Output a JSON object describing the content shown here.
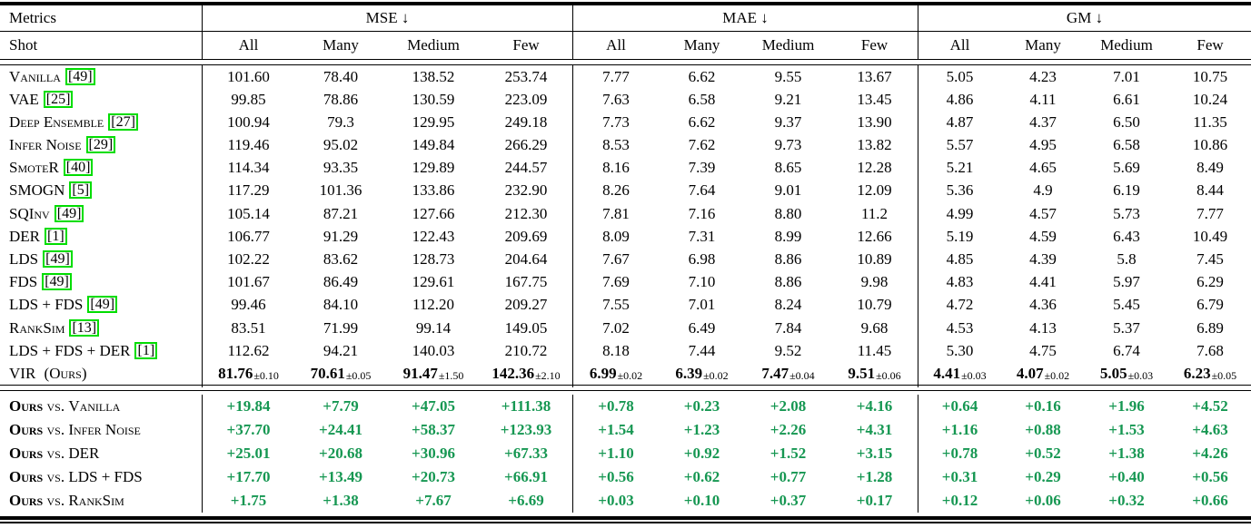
{
  "table": {
    "header": {
      "metrics_label": "Metrics",
      "shot_label": "Shot",
      "groups": [
        "MSE ↓",
        "MAE ↓",
        "GM ↓"
      ],
      "subcols": [
        "All",
        "Many",
        "Medium",
        "Few"
      ]
    },
    "methods": [
      {
        "name": "Vanilla",
        "cite": "49",
        "values": [
          "101.60",
          "78.40",
          "138.52",
          "253.74",
          "7.77",
          "6.62",
          "9.55",
          "13.67",
          "5.05",
          "4.23",
          "7.01",
          "10.75"
        ]
      },
      {
        "name": "VAE",
        "cite": "25",
        "values": [
          "99.85",
          "78.86",
          "130.59",
          "223.09",
          "7.63",
          "6.58",
          "9.21",
          "13.45",
          "4.86",
          "4.11",
          "6.61",
          "10.24"
        ]
      },
      {
        "name": "Deep Ensemble",
        "cite": "27",
        "values": [
          "100.94",
          "79.3",
          "129.95",
          "249.18",
          "7.73",
          "6.62",
          "9.37",
          "13.90",
          "4.87",
          "4.37",
          "6.50",
          "11.35"
        ]
      },
      {
        "name": "Infer Noise",
        "cite": "29",
        "values": [
          "119.46",
          "95.02",
          "149.84",
          "266.29",
          "8.53",
          "7.62",
          "9.73",
          "13.82",
          "5.57",
          "4.95",
          "6.58",
          "10.86"
        ]
      },
      {
        "name": "SmoteR",
        "cite": "40",
        "values": [
          "114.34",
          "93.35",
          "129.89",
          "244.57",
          "8.16",
          "7.39",
          "8.65",
          "12.28",
          "5.21",
          "4.65",
          "5.69",
          "8.49"
        ]
      },
      {
        "name": "SMOGN",
        "cite": "5",
        "values": [
          "117.29",
          "101.36",
          "133.86",
          "232.90",
          "8.26",
          "7.64",
          "9.01",
          "12.09",
          "5.36",
          "4.9",
          "6.19",
          "8.44"
        ]
      },
      {
        "name": "SQInv",
        "cite": "49",
        "values": [
          "105.14",
          "87.21",
          "127.66",
          "212.30",
          "7.81",
          "7.16",
          "8.80",
          "11.2",
          "4.99",
          "4.57",
          "5.73",
          "7.77"
        ]
      },
      {
        "name": "DER",
        "cite": "1",
        "values": [
          "106.77",
          "91.29",
          "122.43",
          "209.69",
          "8.09",
          "7.31",
          "8.99",
          "12.66",
          "5.19",
          "4.59",
          "6.43",
          "10.49"
        ]
      },
      {
        "name": "LDS",
        "cite": "49",
        "values": [
          "102.22",
          "83.62",
          "128.73",
          "204.64",
          "7.67",
          "6.98",
          "8.86",
          "10.89",
          "4.85",
          "4.39",
          "5.8",
          "7.45"
        ]
      },
      {
        "name": "FDS",
        "cite": "49",
        "values": [
          "101.67",
          "86.49",
          "129.61",
          "167.75",
          "7.69",
          "7.10",
          "8.86",
          "9.98",
          "4.83",
          "4.41",
          "5.97",
          "6.29"
        ]
      },
      {
        "name": "LDS + FDS",
        "cite": "49",
        "values": [
          "99.46",
          "84.10",
          "112.20",
          "209.27",
          "7.55",
          "7.01",
          "8.24",
          "10.79",
          "4.72",
          "4.36",
          "5.45",
          "6.79"
        ]
      },
      {
        "name": "RankSim",
        "cite": "13",
        "values": [
          "83.51",
          "71.99",
          "99.14",
          "149.05",
          "7.02",
          "6.49",
          "7.84",
          "9.68",
          "4.53",
          "4.13",
          "5.37",
          "6.89"
        ]
      },
      {
        "name": "LDS + FDS + DER",
        "cite": "1",
        "values": [
          "112.62",
          "94.21",
          "140.03",
          "210.72",
          "8.18",
          "7.44",
          "9.52",
          "11.45",
          "5.30",
          "4.75",
          "6.74",
          "7.68"
        ]
      },
      {
        "name": "VIR",
        "suffix": "(Ours)",
        "values": [
          "81.76",
          "70.61",
          "91.47",
          "142.36",
          "6.99",
          "6.39",
          "7.47",
          "9.51",
          "4.41",
          "4.07",
          "5.05",
          "6.23"
        ],
        "pms": [
          "0.10",
          "0.05",
          "1.50",
          "2.10",
          "0.02",
          "0.02",
          "0.04",
          "0.06",
          "0.03",
          "0.02",
          "0.03",
          "0.05"
        ]
      }
    ],
    "comparison_prefix": "Ours",
    "comparison_vs": "vs.",
    "comparisons": [
      {
        "target": "Vanilla",
        "values": [
          "+19.84",
          "+7.79",
          "+47.05",
          "+111.38",
          "+0.78",
          "+0.23",
          "+2.08",
          "+4.16",
          "+0.64",
          "+0.16",
          "+1.96",
          "+4.52"
        ]
      },
      {
        "target": "Infer Noise",
        "values": [
          "+37.70",
          "+24.41",
          "+58.37",
          "+123.93",
          "+1.54",
          "+1.23",
          "+2.26",
          "+4.31",
          "+1.16",
          "+0.88",
          "+1.53",
          "+4.63"
        ]
      },
      {
        "target": "DER",
        "values": [
          "+25.01",
          "+20.68",
          "+30.96",
          "+67.33",
          "+1.10",
          "+0.92",
          "+1.52",
          "+3.15",
          "+0.78",
          "+0.52",
          "+1.38",
          "+4.26"
        ]
      },
      {
        "target": "LDS + FDS",
        "values": [
          "+17.70",
          "+13.49",
          "+20.73",
          "+66.91",
          "+0.56",
          "+0.62",
          "+0.77",
          "+1.28",
          "+0.31",
          "+0.29",
          "+0.40",
          "+0.56"
        ]
      },
      {
        "target": "RankSim",
        "values": [
          "+1.75",
          "+1.38",
          "+7.67",
          "+6.69",
          "+0.03",
          "+0.10",
          "+0.37",
          "+0.17",
          "+0.12",
          "+0.06",
          "+0.32",
          "+0.66"
        ]
      }
    ],
    "colors": {
      "diff_green": "#169752",
      "cite_border": "#00dd00"
    }
  }
}
